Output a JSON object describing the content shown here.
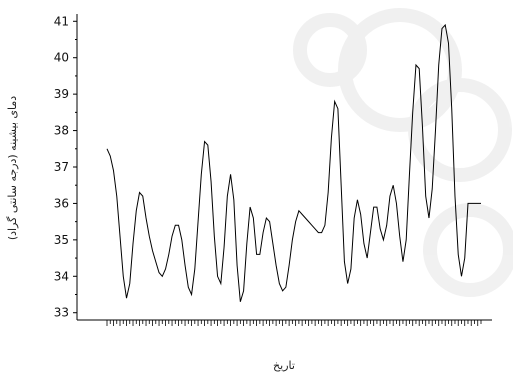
{
  "chart_data": {
    "type": "line",
    "xlabel": "تاریخ",
    "ylabel": "دمای بیشینه (درجه سانتی گراد)",
    "ylim": [
      32.8,
      41.2
    ],
    "y_ticks": [
      33,
      34,
      35,
      36,
      37,
      38,
      39,
      40,
      41
    ],
    "x_count": 116,
    "y": [
      37.5,
      37.3,
      36.9,
      36.2,
      35.1,
      34.0,
      33.4,
      33.8,
      34.9,
      35.8,
      36.3,
      36.2,
      35.6,
      35.1,
      34.7,
      34.4,
      34.1,
      34.0,
      34.2,
      34.6,
      35.1,
      35.4,
      35.4,
      35.0,
      34.3,
      33.7,
      33.5,
      34.2,
      35.5,
      36.8,
      37.7,
      37.6,
      36.6,
      35.1,
      34.0,
      33.8,
      34.8,
      36.2,
      36.8,
      36.1,
      34.3,
      33.3,
      33.6,
      34.9,
      35.9,
      35.6,
      34.6,
      34.6,
      35.2,
      35.6,
      35.5,
      34.9,
      34.3,
      33.8,
      33.6,
      33.7,
      34.3,
      35.0,
      35.5,
      35.8,
      35.7,
      35.6,
      35.5,
      35.4,
      35.3,
      35.2,
      35.2,
      35.4,
      36.3,
      37.8,
      38.8,
      38.6,
      36.5,
      34.4,
      33.8,
      34.2,
      35.6,
      36.1,
      35.7,
      34.9,
      34.5,
      35.2,
      35.9,
      35.9,
      35.3,
      35.0,
      35.4,
      36.2,
      36.5,
      36.0,
      35.1,
      34.4,
      35.0,
      36.8,
      38.5,
      39.8,
      39.7,
      38.1,
      36.2,
      35.6,
      36.4,
      38.0,
      39.8,
      40.8,
      40.9,
      40.4,
      38.6,
      36.2,
      34.6,
      34.0,
      34.5,
      36.0,
      36.0,
      36.0,
      36.0,
      36.0
    ],
    "grid": false,
    "legend": "none"
  }
}
